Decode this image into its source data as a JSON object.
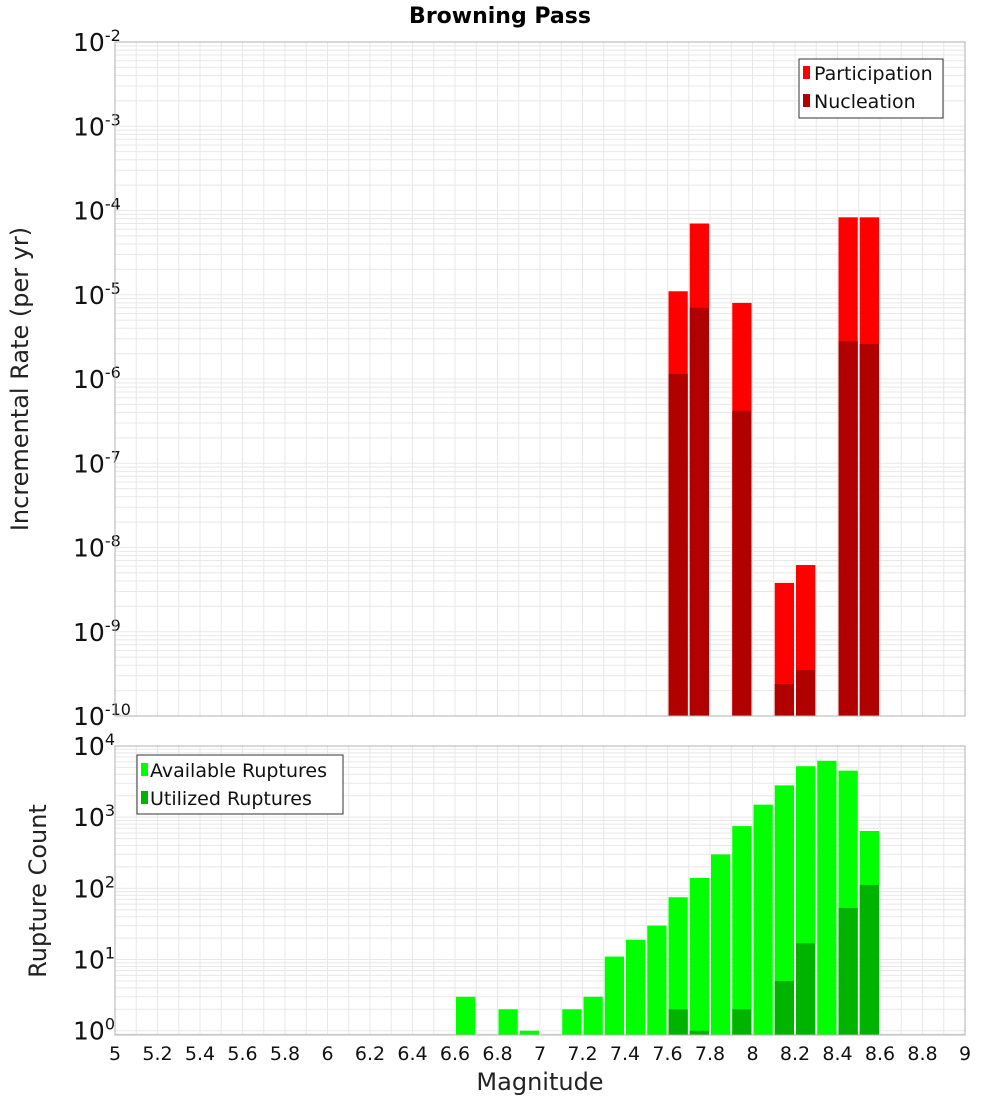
{
  "chart_data": [
    {
      "type": "bar",
      "title": "Browning Pass",
      "xlabel": "",
      "ylabel": "Incremental Rate (per yr)",
      "yscale": "log",
      "ylim_exponents": [
        -10,
        -2
      ],
      "ytick_base": "10",
      "yticks": [
        "-2",
        "-3",
        "-4",
        "-5",
        "-6",
        "-7",
        "-8",
        "-9",
        "-10"
      ],
      "xlim": [
        5,
        9
      ],
      "legend_position": "top-right",
      "legend": [
        "Participation",
        "Nucleation"
      ],
      "colors": {
        "Participation": "#ff0000",
        "Nucleation": "#b00000"
      },
      "bin_width": 0.1,
      "x": [
        7.65,
        7.75,
        7.95,
        8.15,
        8.25,
        8.45,
        8.55
      ],
      "series": [
        {
          "name": "Participation",
          "values": [
            1.1e-05,
            7e-05,
            8e-06,
            3.8e-09,
            6.2e-09,
            8.3e-05,
            8.3e-05
          ]
        },
        {
          "name": "Nucleation",
          "values": [
            1.15e-06,
            7e-06,
            4.2e-07,
            2.4e-10,
            3.5e-10,
            2.8e-06,
            2.6e-06
          ]
        }
      ]
    },
    {
      "type": "bar",
      "xlabel": "Magnitude",
      "ylabel": "Rupture Count",
      "yscale": "log",
      "ylim_exponents": [
        -0.06,
        4
      ],
      "ytick_base": "10",
      "yticks": [
        "4",
        "3",
        "2",
        "1",
        "0"
      ],
      "xlim": [
        5,
        9
      ],
      "xticks": [
        "5",
        "5.2",
        "5.4",
        "5.6",
        "5.8",
        "6",
        "6.2",
        "6.4",
        "6.6",
        "6.8",
        "7",
        "7.2",
        "7.4",
        "7.6",
        "7.8",
        "8",
        "8.2",
        "8.4",
        "8.6",
        "8.8",
        "9"
      ],
      "legend_position": "top-left",
      "legend": [
        "Available Ruptures",
        "Utilized Ruptures"
      ],
      "colors": {
        "Available Ruptures": "#00ff00",
        "Utilized Ruptures": "#00b300"
      },
      "bin_width": 0.1,
      "x": [
        6.65,
        6.85,
        6.95,
        7.15,
        7.25,
        7.35,
        7.45,
        7.55,
        7.65,
        7.75,
        7.85,
        7.95,
        8.05,
        8.15,
        8.25,
        8.35,
        8.45,
        8.55
      ],
      "series": [
        {
          "name": "Available Ruptures",
          "values": [
            3,
            2,
            1,
            2,
            3,
            11,
            19,
            30,
            75,
            140,
            300,
            750,
            1500,
            2800,
            5200,
            6200,
            4500,
            640
          ]
        },
        {
          "name": "Utilized Ruptures",
          "values": [
            0,
            0,
            0,
            0,
            0,
            0,
            0,
            0,
            2,
            1,
            0,
            2,
            0,
            5,
            17,
            0,
            53,
            112
          ]
        }
      ]
    }
  ]
}
